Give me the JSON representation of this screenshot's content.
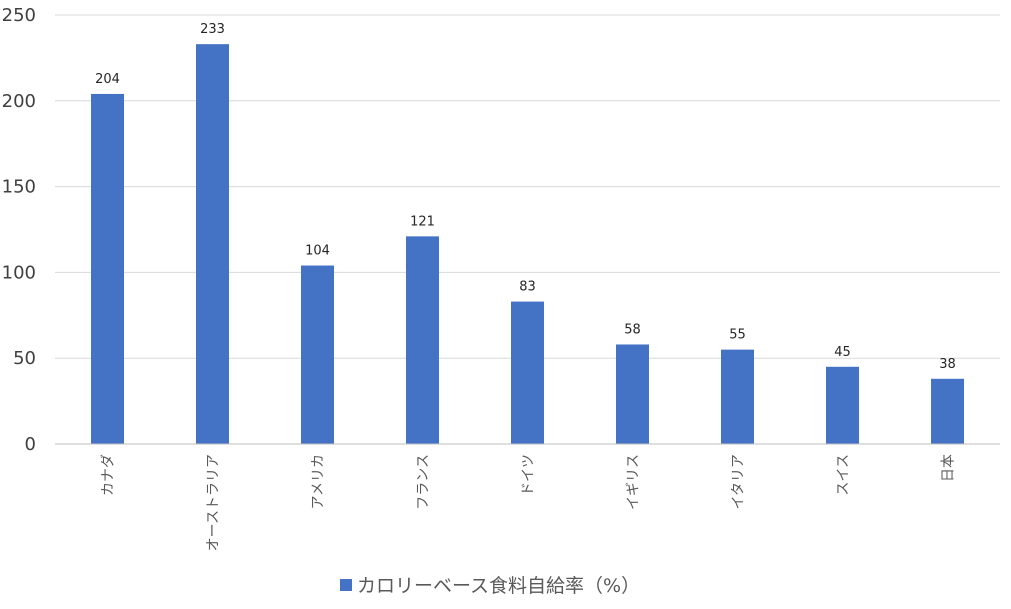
{
  "chart_data": {
    "type": "bar",
    "categories": [
      "カナダ",
      "オーストラリア",
      "アメリカ",
      "フランス",
      "ドイツ",
      "イギリス",
      "イタリア",
      "スイス",
      "日本"
    ],
    "values": [
      204,
      233,
      104,
      121,
      83,
      58,
      55,
      45,
      38
    ],
    "series": [
      {
        "name": "カロリーベース食料自給率（%）",
        "values": [
          204,
          233,
          104,
          121,
          83,
          58,
          55,
          45,
          38
        ],
        "color": "#4472C4"
      }
    ],
    "title": "",
    "xlabel": "",
    "ylabel": "",
    "ylim": [
      0,
      250
    ],
    "yticks": [
      0,
      50,
      100,
      150,
      200,
      250
    ],
    "grid": true,
    "legend": "bottom-center"
  }
}
